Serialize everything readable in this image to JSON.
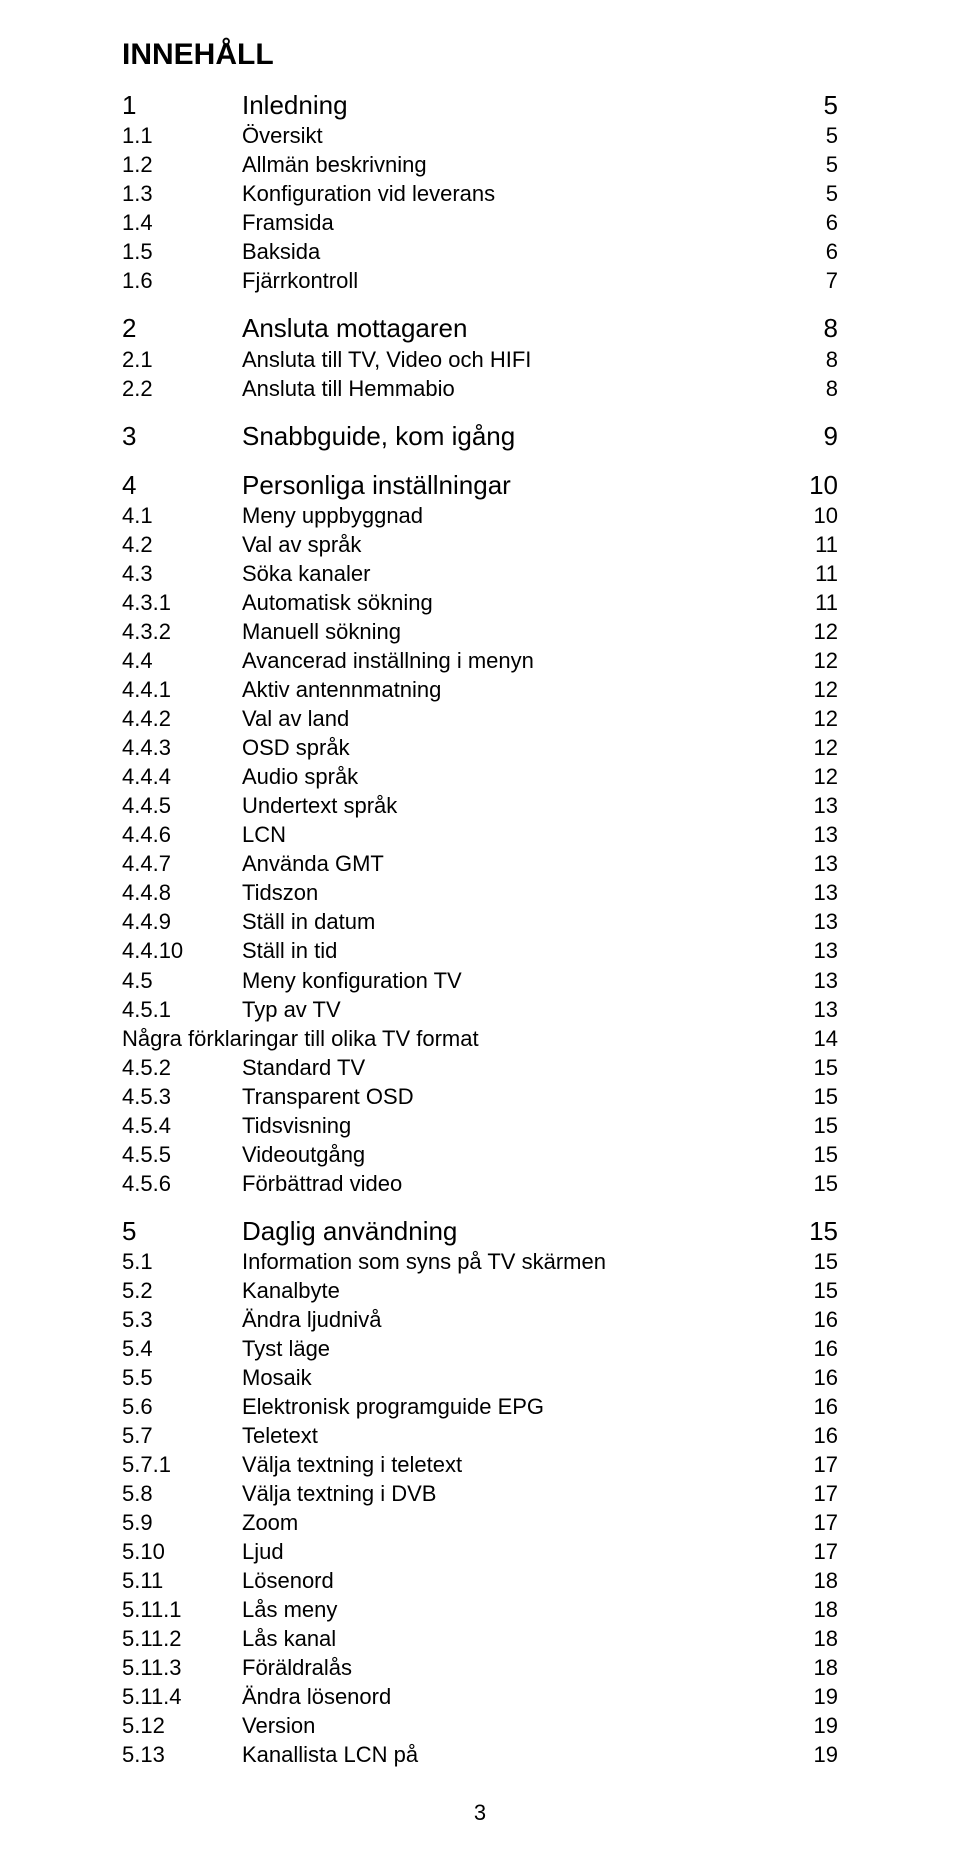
{
  "title": "INNEHÅLL",
  "page_number": "3",
  "colors": {
    "text": "#000000",
    "background": "#ffffff"
  },
  "fonts": {
    "family": "Arial",
    "title_size_pt": 24,
    "level1_size_pt": 20,
    "level2_size_pt": 17
  },
  "entries": [
    {
      "num": "1",
      "label": "Inledning",
      "page": "5",
      "level": 1
    },
    {
      "num": "1.1",
      "label": "Översikt",
      "page": "5",
      "level": 2
    },
    {
      "num": "1.2",
      "label": "Allmän beskrivning",
      "page": "5",
      "level": 2
    },
    {
      "num": "1.3",
      "label": "Konfiguration vid leverans",
      "page": "5",
      "level": 2
    },
    {
      "num": "1.4",
      "label": "Framsida",
      "page": "6",
      "level": 2
    },
    {
      "num": "1.5",
      "label": "Baksida",
      "page": "6",
      "level": 2
    },
    {
      "num": "1.6",
      "label": "Fjärrkontroll",
      "page": "7",
      "level": 2
    },
    {
      "gap": true
    },
    {
      "num": "2",
      "label": "Ansluta mottagaren",
      "page": "8",
      "level": 1
    },
    {
      "num": "2.1",
      "label": "Ansluta till TV, Video och HIFI",
      "page": "8",
      "level": 2
    },
    {
      "num": "2.2",
      "label": "Ansluta till Hemmabio",
      "page": "8",
      "level": 2
    },
    {
      "gap": true
    },
    {
      "num": "3",
      "label": "Snabbguide, kom igång",
      "page": "9",
      "level": 1
    },
    {
      "gap": true
    },
    {
      "num": "4",
      "label": "Personliga inställningar",
      "page": "10",
      "level": 1
    },
    {
      "num": "4.1",
      "label": "Meny uppbyggnad",
      "page": "10",
      "level": 2
    },
    {
      "num": "4.2",
      "label": "Val av språk",
      "page": "11",
      "level": 2
    },
    {
      "num": "4.3",
      "label": "Söka kanaler",
      "page": "11",
      "level": 2
    },
    {
      "num": "4.3.1",
      "label": "Automatisk sökning",
      "page": "11",
      "level": 2
    },
    {
      "num": "4.3.2",
      "label": "Manuell sökning",
      "page": "12",
      "level": 2
    },
    {
      "num": "4.4",
      "label": "Avancerad inställning i menyn",
      "page": "12",
      "level": 2
    },
    {
      "num": "4.4.1",
      "label": "Aktiv antennmatning",
      "page": "12",
      "level": 2
    },
    {
      "num": "4.4.2",
      "label": "Val av land",
      "page": "12",
      "level": 2
    },
    {
      "num": "4.4.3",
      "label": "OSD språk",
      "page": "12",
      "level": 2
    },
    {
      "num": "4.4.4",
      "label": "Audio språk",
      "page": "12",
      "level": 2
    },
    {
      "num": "4.4.5",
      "label": "Undertext språk",
      "page": "13",
      "level": 2
    },
    {
      "num": "4.4.6",
      "label": "LCN",
      "page": "13",
      "level": 2
    },
    {
      "num": "4.4.7",
      "label": "Använda GMT",
      "page": "13",
      "level": 2
    },
    {
      "num": "4.4.8",
      "label": "Tidszon",
      "page": "13",
      "level": 2
    },
    {
      "num": "4.4.9",
      "label": "Ställ in datum",
      "page": "13",
      "level": 2
    },
    {
      "num": "4.4.10",
      "label": "Ställ in tid",
      "page": "13",
      "level": 2
    },
    {
      "num": "4.5",
      "label": "Meny konfiguration TV",
      "page": "13",
      "level": 2
    },
    {
      "num": "4.5.1",
      "label": "Typ av TV",
      "page": "13",
      "level": 2
    },
    {
      "num": "",
      "label": "Några förklaringar till olika TV format",
      "page": "14",
      "level": 2,
      "nonum": true
    },
    {
      "num": "4.5.2",
      "label": "Standard TV",
      "page": "15",
      "level": 2
    },
    {
      "num": "4.5.3",
      "label": "Transparent OSD",
      "page": "15",
      "level": 2
    },
    {
      "num": "4.5.4",
      "label": "Tidsvisning",
      "page": "15",
      "level": 2
    },
    {
      "num": "4.5.5",
      "label": "Videoutgång",
      "page": "15",
      "level": 2
    },
    {
      "num": "4.5.6",
      "label": "Förbättrad video",
      "page": "15",
      "level": 2
    },
    {
      "gap": true
    },
    {
      "num": "5",
      "label": "Daglig användning",
      "page": "15",
      "level": 1
    },
    {
      "num": "5.1",
      "label": "Information som syns på TV skärmen",
      "page": "15",
      "level": 2
    },
    {
      "num": "5.2",
      "label": "Kanalbyte",
      "page": "15",
      "level": 2
    },
    {
      "num": "5.3",
      "label": "Ändra ljudnivå",
      "page": "16",
      "level": 2
    },
    {
      "num": "5.4",
      "label": "Tyst läge",
      "page": "16",
      "level": 2
    },
    {
      "num": "5.5",
      "label": "Mosaik",
      "page": "16",
      "level": 2
    },
    {
      "num": "5.6",
      "label": "Elektronisk programguide EPG",
      "page": "16",
      "level": 2
    },
    {
      "num": "5.7",
      "label": "Teletext",
      "page": "16",
      "level": 2
    },
    {
      "num": "5.7.1",
      "label": "Välja textning i teletext",
      "page": "17",
      "level": 2
    },
    {
      "num": "5.8",
      "label": "Välja textning i DVB",
      "page": "17",
      "level": 2
    },
    {
      "num": "5.9",
      "label": "Zoom",
      "page": "17",
      "level": 2
    },
    {
      "num": "5.10",
      "label": "Ljud",
      "page": "17",
      "level": 2
    },
    {
      "num": "5.11",
      "label": "Lösenord",
      "page": "18",
      "level": 2
    },
    {
      "num": "5.11.1",
      "label": "Lås meny",
      "page": "18",
      "level": 2
    },
    {
      "num": "5.11.2",
      "label": "Lås kanal",
      "page": "18",
      "level": 2
    },
    {
      "num": "5.11.3",
      "label": "Föräldralås",
      "page": "18",
      "level": 2
    },
    {
      "num": "5.11.4",
      "label": "Ändra lösenord",
      "page": "19",
      "level": 2
    },
    {
      "num": "5.12",
      "label": "Version",
      "page": "19",
      "level": 2
    },
    {
      "num": "5.13",
      "label": "Kanallista LCN på",
      "page": "19",
      "level": 2
    }
  ]
}
